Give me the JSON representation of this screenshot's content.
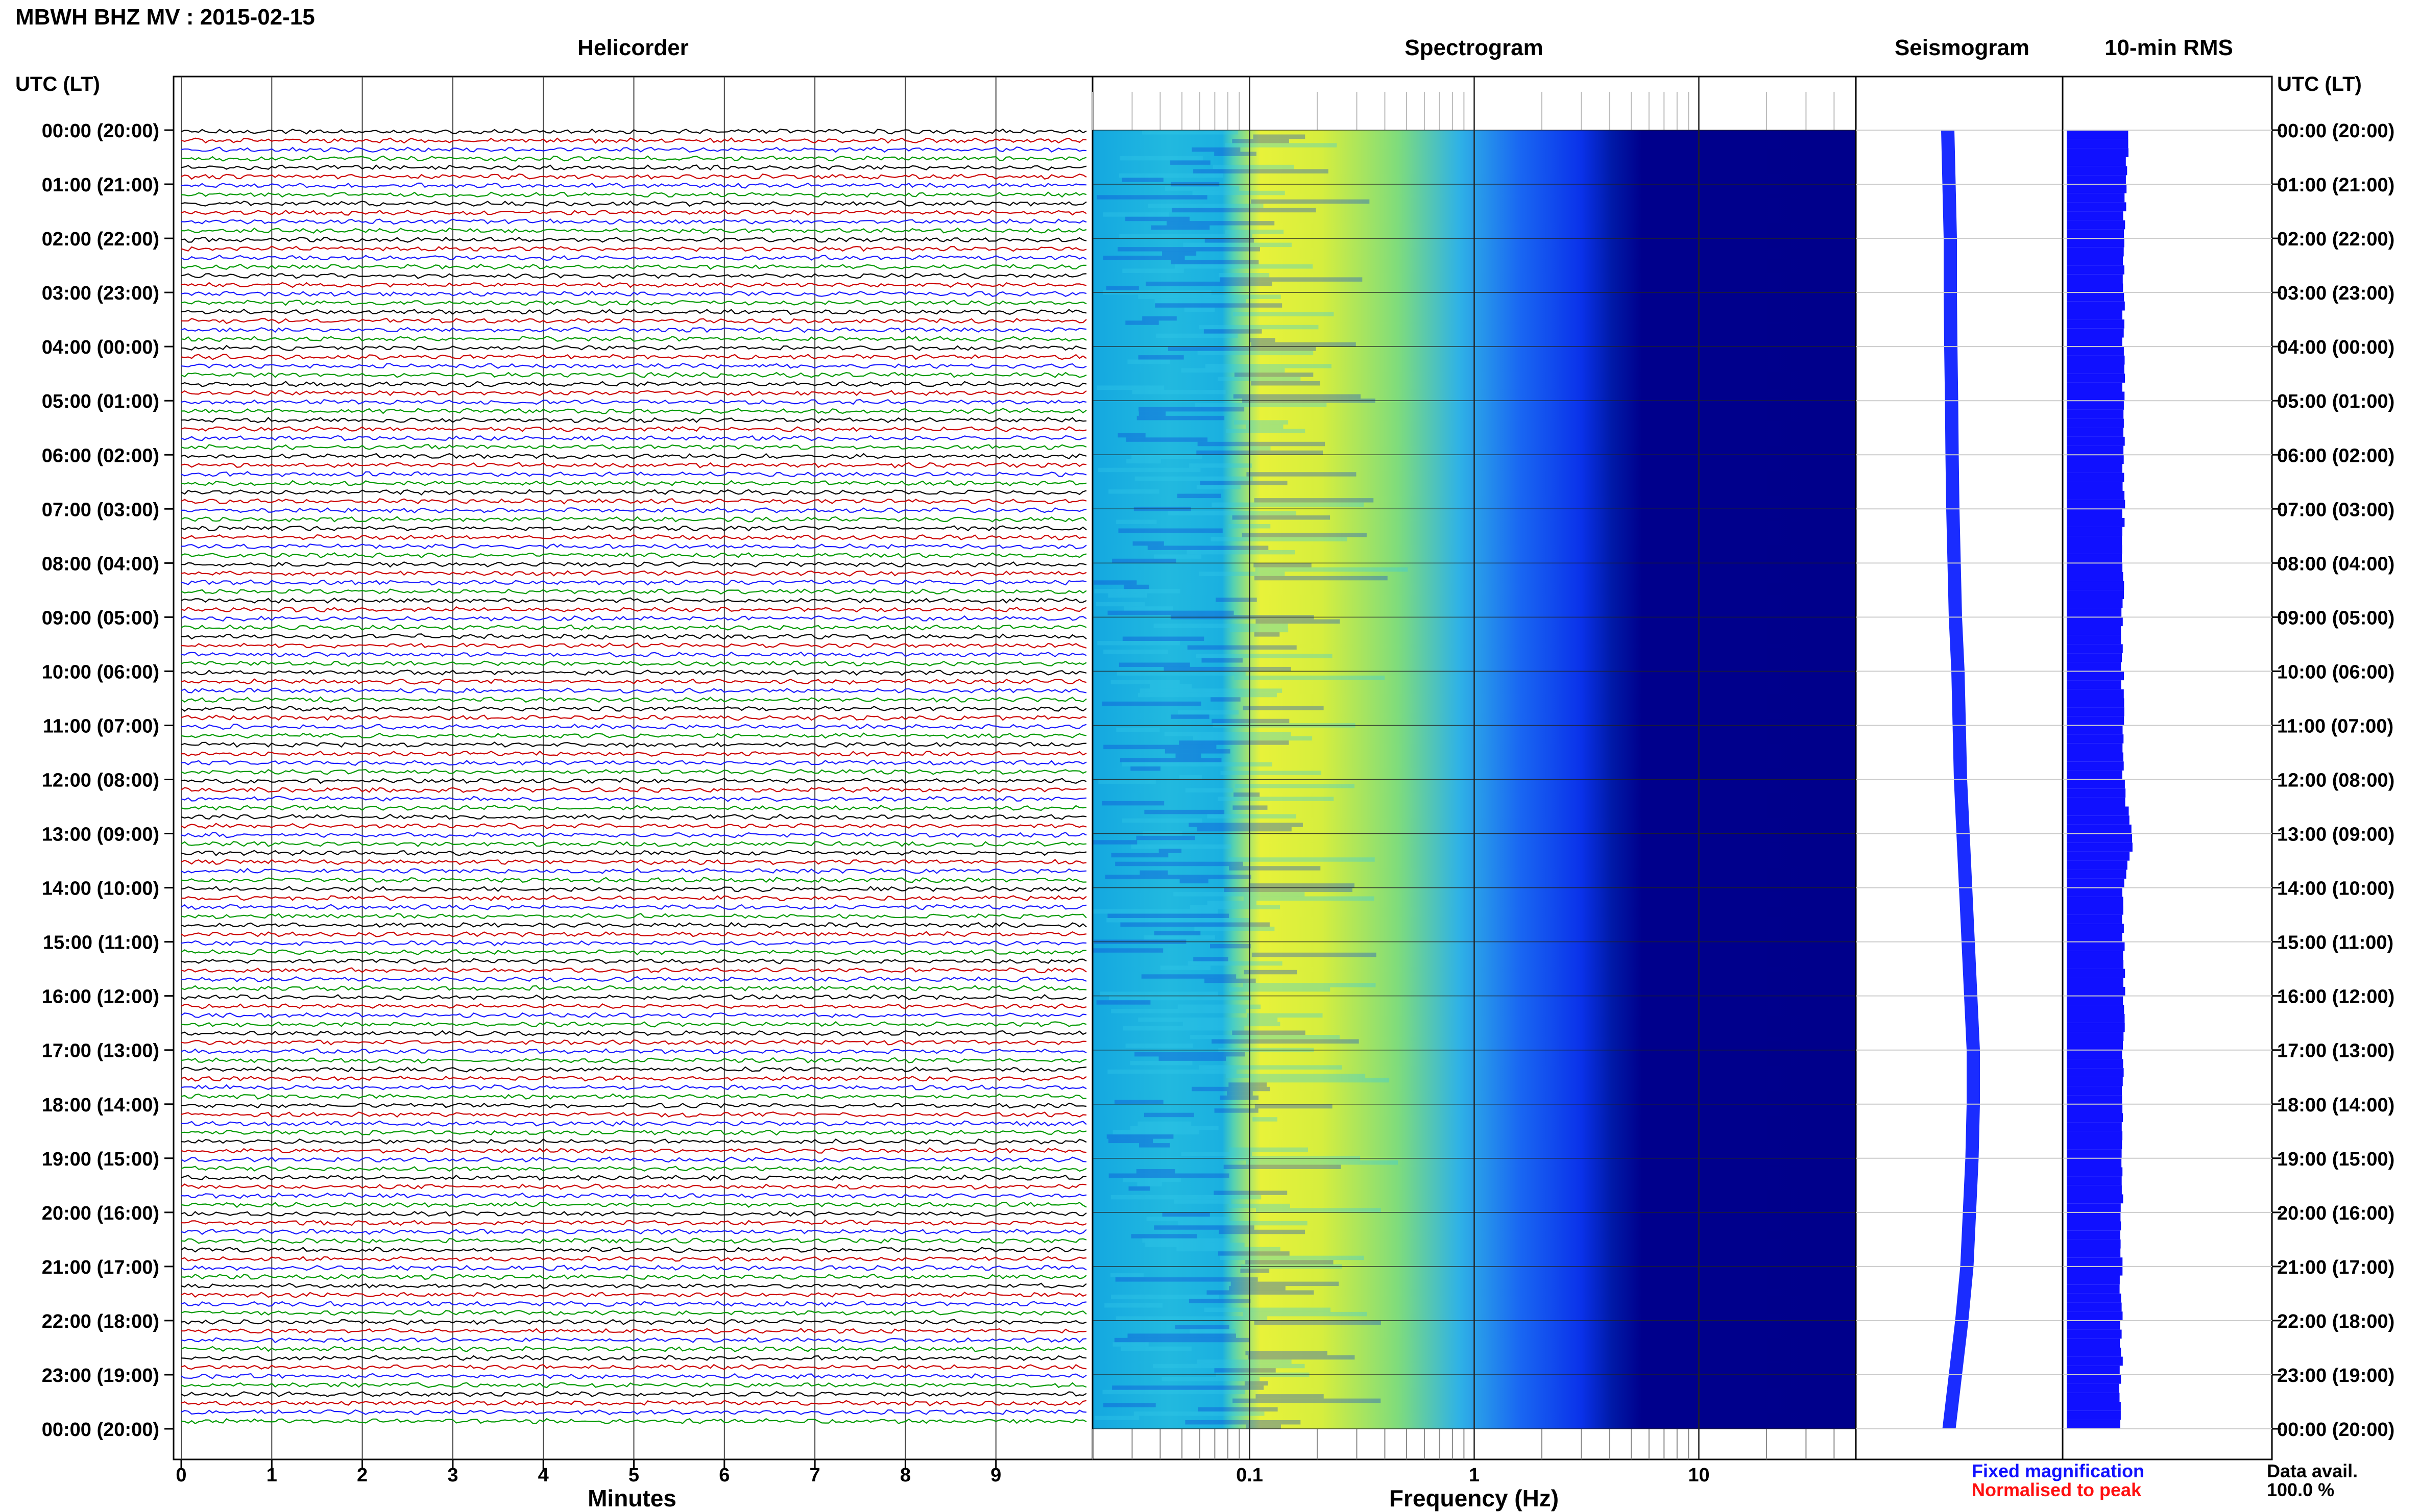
{
  "header": {
    "title": "MBWH BHZ MV : 2015-02-15"
  },
  "panels": {
    "helicorder": "Helicorder",
    "spectrogram": "Spectrogram",
    "seismogram": "Seismogram",
    "rms": "10-min RMS"
  },
  "axes": {
    "utc_left": "UTC (LT)",
    "utc_right": "UTC (LT)",
    "minutes_label": "Minutes",
    "frequency_label": "Frequency (Hz)",
    "minute_ticks": [
      "0",
      "1",
      "2",
      "3",
      "4",
      "5",
      "6",
      "7",
      "8",
      "9"
    ],
    "frequency_ticks": [
      "0.1",
      "1",
      "10"
    ],
    "hours": [
      "00:00 (20:00)",
      "01:00 (21:00)",
      "02:00 (22:00)",
      "03:00 (23:00)",
      "04:00 (00:00)",
      "05:00 (01:00)",
      "06:00 (02:00)",
      "07:00 (03:00)",
      "08:00 (04:00)",
      "09:00 (05:00)",
      "10:00 (06:00)",
      "11:00 (07:00)",
      "12:00 (08:00)",
      "13:00 (09:00)",
      "14:00 (10:00)",
      "15:00 (11:00)",
      "16:00 (12:00)",
      "17:00 (13:00)",
      "18:00 (14:00)",
      "19:00 (15:00)",
      "20:00 (16:00)",
      "21:00 (17:00)",
      "22:00 (18:00)",
      "23:00 (19:00)",
      "00:00 (20:00)"
    ]
  },
  "legend": {
    "fixed": "Fixed magnification",
    "normalised": "Normalised to peak",
    "fixed_color": "#1010ff",
    "normalised_color": "#ff1010"
  },
  "data_avail": {
    "label": "Data avail.",
    "value": "100.0 %"
  },
  "chart_data": {
    "type": "heatmap",
    "station": "MBWH BHZ MV",
    "date": "2015-02-15",
    "helicorder": {
      "minutes_per_line": 10,
      "lines_per_hour": 6,
      "trace_colors": [
        "#000000",
        "#cc0000",
        "#1a1aff",
        "#009900"
      ],
      "xlim_minutes": [
        0,
        10
      ]
    },
    "spectrogram": {
      "scale": "log",
      "xlim_hz": [
        0.02,
        50
      ],
      "dominant_band_hz": [
        0.13,
        0.6
      ],
      "colormap": [
        "#00008b",
        "#0000ff",
        "#1e90ff",
        "#00ced1",
        "#40e0a0",
        "#c8f040",
        "#ffff00"
      ]
    },
    "seismogram_envelope": [
      0.0,
      0.05,
      0.1,
      0.1,
      0.12,
      0.15,
      0.17,
      0.2,
      0.25,
      0.3,
      0.4,
      0.45,
      0.5,
      0.6,
      0.7,
      0.8,
      0.9,
      1.0,
      1.0,
      0.95,
      0.85,
      0.75,
      0.55,
      0.3,
      0.05
    ],
    "rms_10min_relative": [
      0.92,
      0.88,
      0.87,
      0.86,
      0.86,
      0.85,
      0.85,
      0.86,
      0.85,
      0.84,
      0.84,
      0.85,
      0.86,
      1.0,
      0.86,
      0.85,
      0.86,
      0.85,
      0.84,
      0.84,
      0.83,
      0.82,
      0.82,
      0.82,
      0.8
    ],
    "rms_color": "#1010ff"
  }
}
